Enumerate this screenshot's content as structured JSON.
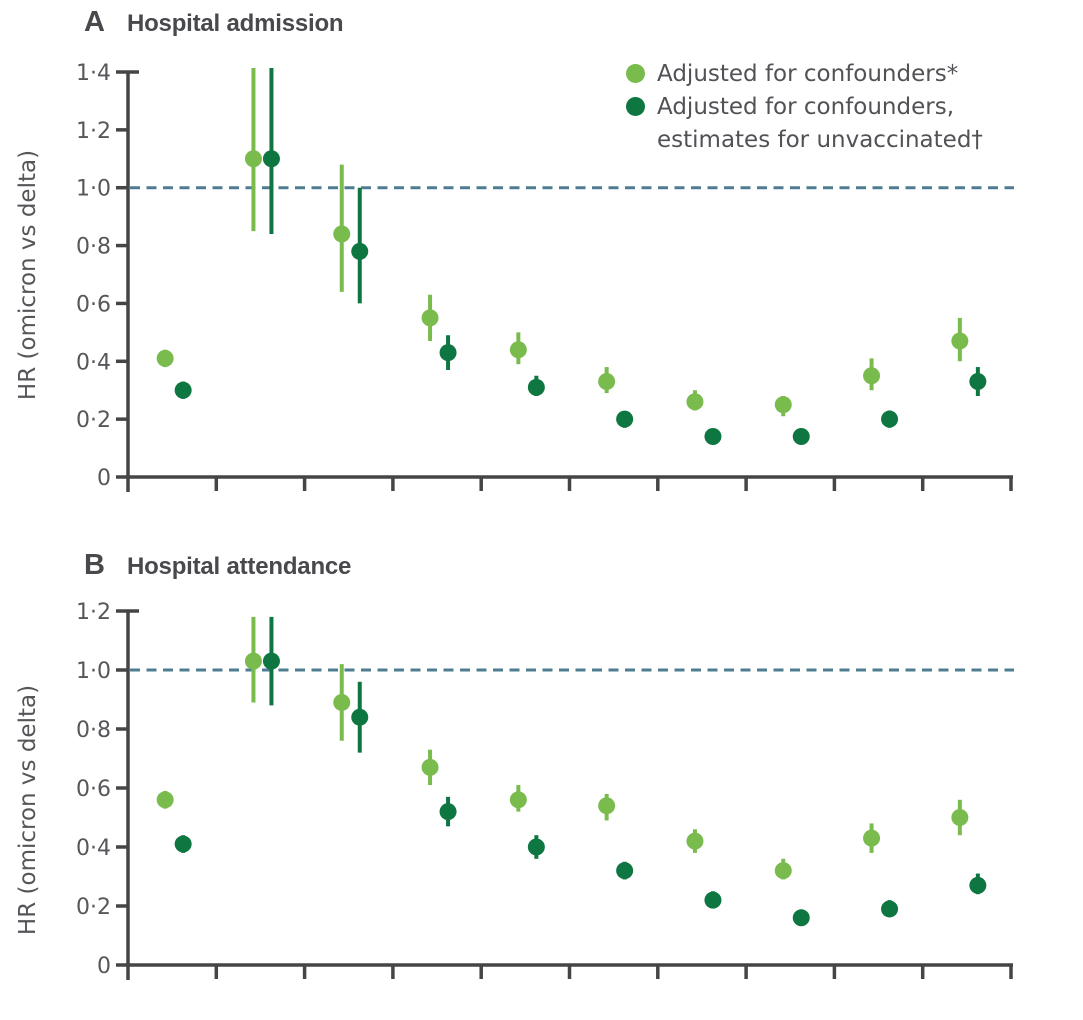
{
  "legend": {
    "line1": "Adjusted for confounders*",
    "line2": "Adjusted for confounders,",
    "line3": "estimates for unvaccinated†"
  },
  "style_colors": {
    "axis": "#454547",
    "tick_label": "#56575A",
    "reference_line": "#4E7D91",
    "light_green": "#7ABB4D",
    "dark_green": "#0E7640"
  },
  "chart_data": [
    {
      "type": "scatter",
      "panel_letter": "A",
      "title": "Hospital admission",
      "ylabel": "HR (omicron vs delta)",
      "ylim": [
        0,
        1.4
      ],
      "yticks": [
        0,
        0.2,
        0.4,
        0.6,
        0.8,
        1.0,
        1.2,
        1.4
      ],
      "ytick_labels": [
        "0",
        "0·2",
        "0·4",
        "0·6",
        "0·8",
        "1·0",
        "1·2",
        "1·4"
      ],
      "reference_line_y": 1.0,
      "n_groups": 10,
      "x_tick_labels": [],
      "grid": false,
      "legend_position": "top-right",
      "series": [
        {
          "name": "Adjusted for confounders*",
          "color": "#7ABB4D",
          "hr": [
            0.41,
            1.1,
            0.84,
            0.55,
            0.44,
            0.33,
            0.26,
            0.25,
            0.35,
            0.47
          ],
          "ci_low": [
            0.38,
            0.85,
            0.64,
            0.47,
            0.39,
            0.29,
            0.23,
            0.21,
            0.3,
            0.4
          ],
          "ci_high": [
            0.44,
            1.45,
            1.08,
            0.63,
            0.5,
            0.38,
            0.3,
            0.28,
            0.41,
            0.55
          ]
        },
        {
          "name": "Adjusted for confounders, estimates for unvaccinated†",
          "color": "#0E7640",
          "hr": [
            0.3,
            1.1,
            0.78,
            0.43,
            0.31,
            0.2,
            0.14,
            0.14,
            0.2,
            0.33
          ],
          "ci_low": [
            0.27,
            0.84,
            0.6,
            0.37,
            0.28,
            0.17,
            0.12,
            0.12,
            0.17,
            0.28
          ],
          "ci_high": [
            0.33,
            1.45,
            1.0,
            0.49,
            0.35,
            0.22,
            0.16,
            0.16,
            0.23,
            0.38
          ]
        }
      ]
    },
    {
      "type": "scatter",
      "panel_letter": "B",
      "title": "Hospital attendance",
      "ylabel": "HR (omicron vs delta)",
      "ylim": [
        0,
        1.2
      ],
      "yticks": [
        0,
        0.2,
        0.4,
        0.6,
        0.8,
        1.0,
        1.2
      ],
      "ytick_labels": [
        "0",
        "0·2",
        "0·4",
        "0·6",
        "0·8",
        "1·0",
        "1·2"
      ],
      "reference_line_y": 1.0,
      "n_groups": 10,
      "x_tick_labels": [],
      "grid": false,
      "series": [
        {
          "name": "Adjusted for confounders*",
          "color": "#7ABB4D",
          "hr": [
            0.56,
            1.03,
            0.89,
            0.67,
            0.56,
            0.54,
            0.42,
            0.32,
            0.43,
            0.5
          ],
          "ci_low": [
            0.53,
            0.89,
            0.76,
            0.61,
            0.52,
            0.49,
            0.38,
            0.29,
            0.38,
            0.44
          ],
          "ci_high": [
            0.59,
            1.18,
            1.02,
            0.73,
            0.61,
            0.58,
            0.46,
            0.36,
            0.48,
            0.56
          ]
        },
        {
          "name": "Adjusted for confounders, estimates for unvaccinated†",
          "color": "#0E7640",
          "hr": [
            0.41,
            1.03,
            0.84,
            0.52,
            0.4,
            0.32,
            0.22,
            0.16,
            0.19,
            0.27
          ],
          "ci_low": [
            0.38,
            0.88,
            0.72,
            0.47,
            0.36,
            0.29,
            0.2,
            0.14,
            0.17,
            0.24
          ],
          "ci_high": [
            0.44,
            1.18,
            0.96,
            0.57,
            0.44,
            0.35,
            0.25,
            0.18,
            0.22,
            0.31
          ]
        }
      ]
    }
  ]
}
